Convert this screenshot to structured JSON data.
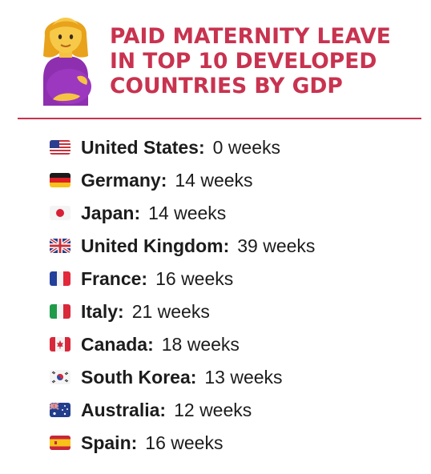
{
  "title": "PAID MATERNITY LEAVE\nIN TOP 10 DEVELOPED\nCOUNTRIES BY GDP",
  "colors": {
    "accent": "#c8334f"
  },
  "header_icon": "pregnant-woman-icon",
  "rows": [
    {
      "country": "United States:",
      "weeks": "0 weeks",
      "flag": "us-flag-icon"
    },
    {
      "country": "Germany:",
      "weeks": "14 weeks",
      "flag": "germany-flag-icon"
    },
    {
      "country": "Japan:",
      "weeks": "14 weeks",
      "flag": "japan-flag-icon"
    },
    {
      "country": "United Kingdom:",
      "weeks": "39 weeks",
      "flag": "uk-flag-icon"
    },
    {
      "country": "France:",
      "weeks": "16 weeks",
      "flag": "france-flag-icon"
    },
    {
      "country": "Italy:",
      "weeks": "21 weeks",
      "flag": "italy-flag-icon"
    },
    {
      "country": "Canada:",
      "weeks": "18 weeks",
      "flag": "canada-flag-icon"
    },
    {
      "country": "South Korea:",
      "weeks": "13 weeks",
      "flag": "south-korea-flag-icon"
    },
    {
      "country": "Australia:",
      "weeks": "12 weeks",
      "flag": "australia-flag-icon"
    },
    {
      "country": "Spain:",
      "weeks": "16 weeks",
      "flag": "spain-flag-icon"
    }
  ]
}
